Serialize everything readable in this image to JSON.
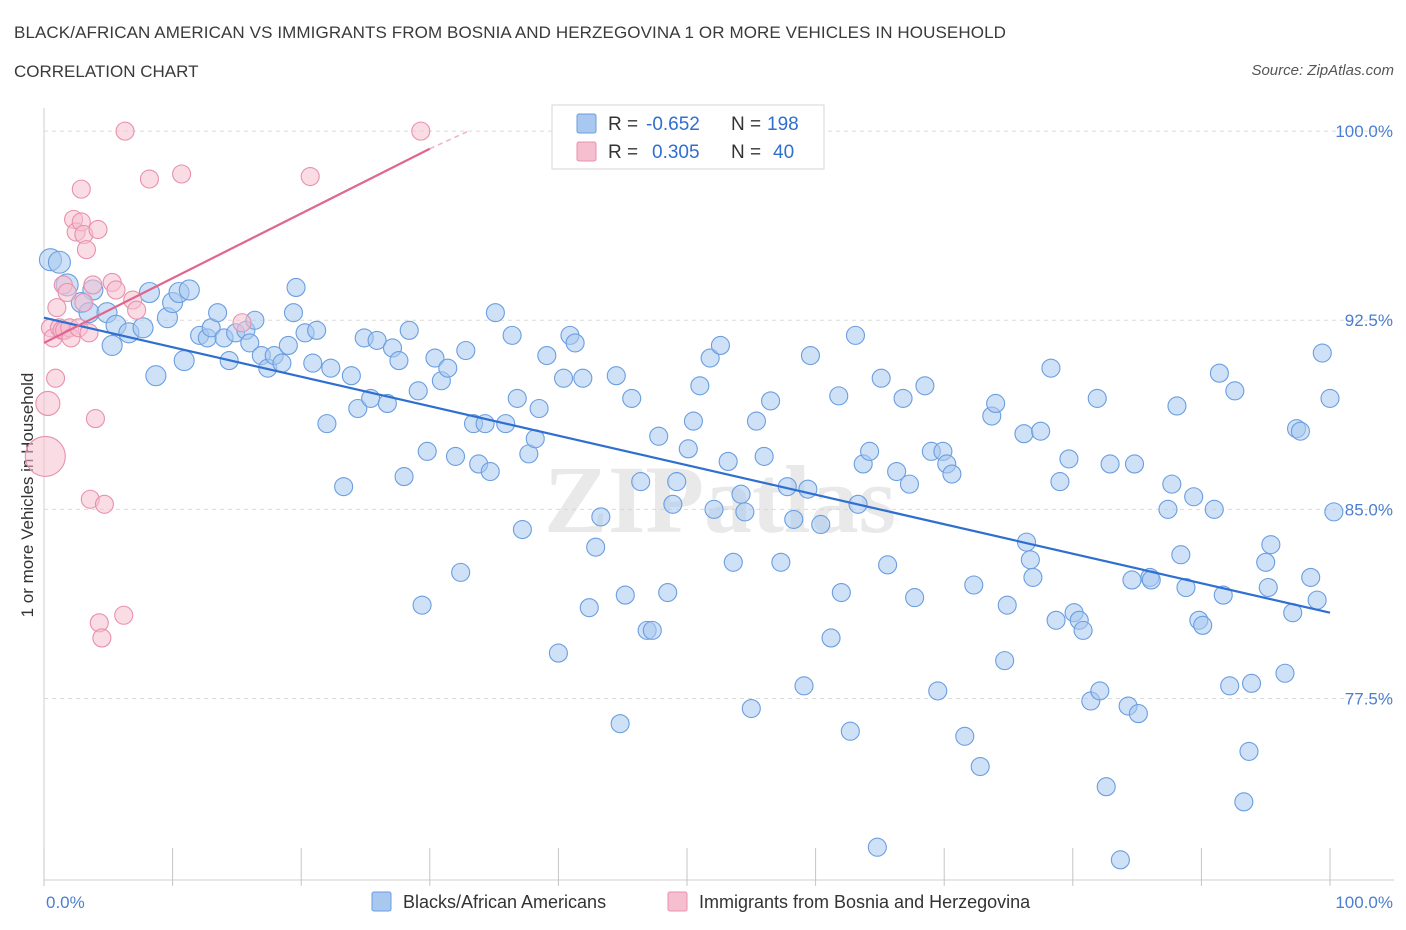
{
  "header": {
    "title": "BLACK/AFRICAN AMERICAN VS IMMIGRANTS FROM BOSNIA AND HERZEGOVINA 1 OR MORE VEHICLES IN HOUSEHOLD",
    "subtitle": "CORRELATION CHART",
    "source": "Source: ZipAtlas.com"
  },
  "watermark": "ZIPatlas",
  "legend": {
    "r_label": "R =",
    "n_label": "N =",
    "rows": [
      {
        "r": "-0.652",
        "n": "198"
      },
      {
        "r": "0.305",
        "n": "40"
      }
    ]
  },
  "bottom_legend": {
    "items": [
      "Blacks/African Americans",
      "Immigrants from Bosnia and Herzegovina"
    ]
  },
  "colors": {
    "blue_fill": "#a8c8f0",
    "blue_stroke": "#6a9ee0",
    "blue_line": "#2f6fd0",
    "pink_fill": "#f6bfd0",
    "pink_stroke": "#e890ae",
    "pink_line": "#e0668f",
    "grid": "#dcdcdc",
    "tick_label": "#4a7fd0"
  },
  "chart_data": {
    "type": "scatter",
    "title": "BLACK/AFRICAN AMERICAN VS IMMIGRANTS FROM BOSNIA AND HERZEGOVINA 1 OR MORE VEHICLES IN HOUSEHOLD",
    "subtitle": "CORRELATION CHART",
    "xlabel": "",
    "ylabel": "1 or more Vehicles in Household",
    "xlim": [
      0,
      100
    ],
    "ylim": [
      70.3,
      100.6
    ],
    "y_ticks": [
      77.5,
      85.0,
      92.5,
      100.0
    ],
    "y_tick_labels": [
      "77.5%",
      "85.0%",
      "92.5%",
      "100.0%"
    ],
    "x_tick_labels": [
      "0.0%",
      "100.0%"
    ],
    "grid": true,
    "legend_position": "top-center",
    "series": [
      {
        "name": "Blacks/African Americans",
        "color": "#a8c8f0",
        "r": -0.652,
        "n": 198,
        "trend": {
          "x": [
            0,
            100
          ],
          "y": [
            92.6,
            80.9
          ]
        },
        "points": [
          [
            0.5,
            94.9
          ],
          [
            1.2,
            94.8
          ],
          [
            1.8,
            93.9
          ],
          [
            3.8,
            93.7
          ],
          [
            2.9,
            93.2
          ],
          [
            3.5,
            92.8
          ],
          [
            4.9,
            92.8
          ],
          [
            5.6,
            92.3
          ],
          [
            6.6,
            92.0
          ],
          [
            7.7,
            92.2
          ],
          [
            8.2,
            93.6
          ],
          [
            9.6,
            92.6
          ],
          [
            10.0,
            93.2
          ],
          [
            10.5,
            93.6
          ],
          [
            11.3,
            93.7
          ],
          [
            5.3,
            91.5
          ],
          [
            8.7,
            90.3
          ],
          [
            10.9,
            90.9
          ],
          [
            12.1,
            91.9
          ],
          [
            12.7,
            91.8
          ],
          [
            13.0,
            92.2
          ],
          [
            13.5,
            92.8
          ],
          [
            14.0,
            91.8
          ],
          [
            14.4,
            90.9
          ],
          [
            14.9,
            92.0
          ],
          [
            15.7,
            92.1
          ],
          [
            16.0,
            91.6
          ],
          [
            16.4,
            92.5
          ],
          [
            16.9,
            91.1
          ],
          [
            17.4,
            90.6
          ],
          [
            17.9,
            91.1
          ],
          [
            18.5,
            90.8
          ],
          [
            19.0,
            91.5
          ],
          [
            19.4,
            92.8
          ],
          [
            19.6,
            93.8
          ],
          [
            20.3,
            92.0
          ],
          [
            20.9,
            90.8
          ],
          [
            21.2,
            92.1
          ],
          [
            22.3,
            90.6
          ],
          [
            22.0,
            88.4
          ],
          [
            23.3,
            85.9
          ],
          [
            23.9,
            90.3
          ],
          [
            24.4,
            89.0
          ],
          [
            24.9,
            91.8
          ],
          [
            25.4,
            89.4
          ],
          [
            25.9,
            91.7
          ],
          [
            26.7,
            89.2
          ],
          [
            27.1,
            91.4
          ],
          [
            27.6,
            90.9
          ],
          [
            28.0,
            86.3
          ],
          [
            28.4,
            92.1
          ],
          [
            29.1,
            89.7
          ],
          [
            29.4,
            81.2
          ],
          [
            29.8,
            87.3
          ],
          [
            30.4,
            91.0
          ],
          [
            30.9,
            90.1
          ],
          [
            31.4,
            90.6
          ],
          [
            32.0,
            87.1
          ],
          [
            32.4,
            82.5
          ],
          [
            32.8,
            91.3
          ],
          [
            33.4,
            88.4
          ],
          [
            33.8,
            86.8
          ],
          [
            34.3,
            88.4
          ],
          [
            34.7,
            86.5
          ],
          [
            35.1,
            92.8
          ],
          [
            35.9,
            88.4
          ],
          [
            36.4,
            91.9
          ],
          [
            36.8,
            89.4
          ],
          [
            37.2,
            84.2
          ],
          [
            37.7,
            87.2
          ],
          [
            38.2,
            87.8
          ],
          [
            38.5,
            89.0
          ],
          [
            39.1,
            91.1
          ],
          [
            40.0,
            79.3
          ],
          [
            40.4,
            90.2
          ],
          [
            40.9,
            91.9
          ],
          [
            41.3,
            91.6
          ],
          [
            41.9,
            90.2
          ],
          [
            42.4,
            81.1
          ],
          [
            42.9,
            83.5
          ],
          [
            43.3,
            84.7
          ],
          [
            44.5,
            90.3
          ],
          [
            44.8,
            76.5
          ],
          [
            45.2,
            81.6
          ],
          [
            45.7,
            89.4
          ],
          [
            46.4,
            86.1
          ],
          [
            46.9,
            80.2
          ],
          [
            47.3,
            80.2
          ],
          [
            47.8,
            87.9
          ],
          [
            48.5,
            81.7
          ],
          [
            48.9,
            85.2
          ],
          [
            49.2,
            86.1
          ],
          [
            50.1,
            87.4
          ],
          [
            50.5,
            88.5
          ],
          [
            51.0,
            89.9
          ],
          [
            51.8,
            91.0
          ],
          [
            52.1,
            85.0
          ],
          [
            52.6,
            91.5
          ],
          [
            53.2,
            86.9
          ],
          [
            53.6,
            82.9
          ],
          [
            54.2,
            85.6
          ],
          [
            54.5,
            84.9
          ],
          [
            55.0,
            77.1
          ],
          [
            55.4,
            88.5
          ],
          [
            56.0,
            87.1
          ],
          [
            56.5,
            89.3
          ],
          [
            57.3,
            82.9
          ],
          [
            57.8,
            85.9
          ],
          [
            58.3,
            84.6
          ],
          [
            59.1,
            78.0
          ],
          [
            59.4,
            85.8
          ],
          [
            59.6,
            91.1
          ],
          [
            60.4,
            84.4
          ],
          [
            61.2,
            79.9
          ],
          [
            61.8,
            89.5
          ],
          [
            62.0,
            81.7
          ],
          [
            62.7,
            76.2
          ],
          [
            63.1,
            91.9
          ],
          [
            63.3,
            85.2
          ],
          [
            63.7,
            86.8
          ],
          [
            64.2,
            87.3
          ],
          [
            64.8,
            71.6
          ],
          [
            65.1,
            90.2
          ],
          [
            65.6,
            82.8
          ],
          [
            66.3,
            86.5
          ],
          [
            66.8,
            89.4
          ],
          [
            67.3,
            86.0
          ],
          [
            67.7,
            81.5
          ],
          [
            68.5,
            89.9
          ],
          [
            69.0,
            87.3
          ],
          [
            69.5,
            77.8
          ],
          [
            69.9,
            87.3
          ],
          [
            70.2,
            86.8
          ],
          [
            70.6,
            86.4
          ],
          [
            71.6,
            76.0
          ],
          [
            72.3,
            82.0
          ],
          [
            72.8,
            74.8
          ],
          [
            73.7,
            88.7
          ],
          [
            74.0,
            89.2
          ],
          [
            74.7,
            79.0
          ],
          [
            74.9,
            81.2
          ],
          [
            76.2,
            88.0
          ],
          [
            76.4,
            83.7
          ],
          [
            76.7,
            83.0
          ],
          [
            76.9,
            82.3
          ],
          [
            77.5,
            88.1
          ],
          [
            78.3,
            90.6
          ],
          [
            78.7,
            80.6
          ],
          [
            79.0,
            86.1
          ],
          [
            79.7,
            87.0
          ],
          [
            80.1,
            80.9
          ],
          [
            80.5,
            80.6
          ],
          [
            80.8,
            80.2
          ],
          [
            81.4,
            77.4
          ],
          [
            81.9,
            89.4
          ],
          [
            82.1,
            77.8
          ],
          [
            82.6,
            74.0
          ],
          [
            82.9,
            86.8
          ],
          [
            83.7,
            71.1
          ],
          [
            84.3,
            77.2
          ],
          [
            84.6,
            82.2
          ],
          [
            84.8,
            86.8
          ],
          [
            85.1,
            76.9
          ],
          [
            86.0,
            82.3
          ],
          [
            86.1,
            82.2
          ],
          [
            87.4,
            85.0
          ],
          [
            87.7,
            86.0
          ],
          [
            88.1,
            89.1
          ],
          [
            88.4,
            83.2
          ],
          [
            88.8,
            81.9
          ],
          [
            89.4,
            85.5
          ],
          [
            89.8,
            80.6
          ],
          [
            90.1,
            80.4
          ],
          [
            91.0,
            85.0
          ],
          [
            91.4,
            90.4
          ],
          [
            91.7,
            81.6
          ],
          [
            92.2,
            78.0
          ],
          [
            92.6,
            89.7
          ],
          [
            93.3,
            73.4
          ],
          [
            93.7,
            75.4
          ],
          [
            93.9,
            78.1
          ],
          [
            95.0,
            82.9
          ],
          [
            95.2,
            81.9
          ],
          [
            95.4,
            83.6
          ],
          [
            96.5,
            78.5
          ],
          [
            97.1,
            80.9
          ],
          [
            97.4,
            88.2
          ],
          [
            97.7,
            88.1
          ],
          [
            98.5,
            82.3
          ],
          [
            99.0,
            81.4
          ],
          [
            99.4,
            91.2
          ],
          [
            100.0,
            89.4
          ],
          [
            100.3,
            84.9
          ]
        ]
      },
      {
        "name": "Immigrants from Bosnia and Herzegovina",
        "color": "#f6bfd0",
        "r": 0.305,
        "n": 40,
        "trend": {
          "x": [
            0,
            30
          ],
          "y": [
            91.6,
            99.3
          ]
        },
        "trend_dashed": {
          "x": [
            30,
            33
          ],
          "y": [
            99.3,
            100.0
          ]
        },
        "points": [
          [
            0.1,
            87.1
          ],
          [
            0.3,
            89.2
          ],
          [
            0.5,
            92.2
          ],
          [
            0.7,
            91.8
          ],
          [
            0.9,
            90.2
          ],
          [
            1.0,
            93.0
          ],
          [
            1.2,
            92.2
          ],
          [
            1.4,
            92.1
          ],
          [
            1.5,
            93.9
          ],
          [
            1.6,
            92.1
          ],
          [
            1.8,
            93.6
          ],
          [
            2.0,
            92.2
          ],
          [
            2.1,
            91.8
          ],
          [
            2.3,
            96.5
          ],
          [
            2.5,
            96.0
          ],
          [
            2.7,
            92.2
          ],
          [
            2.9,
            97.7
          ],
          [
            2.9,
            96.4
          ],
          [
            3.1,
            95.9
          ],
          [
            3.1,
            93.2
          ],
          [
            3.3,
            95.3
          ],
          [
            3.5,
            92.0
          ],
          [
            3.6,
            85.4
          ],
          [
            3.8,
            93.9
          ],
          [
            4.0,
            88.6
          ],
          [
            4.2,
            96.1
          ],
          [
            4.3,
            80.5
          ],
          [
            4.5,
            79.9
          ],
          [
            4.7,
            85.2
          ],
          [
            5.3,
            94.0
          ],
          [
            5.6,
            93.7
          ],
          [
            6.2,
            80.8
          ],
          [
            6.9,
            93.3
          ],
          [
            7.2,
            92.9
          ],
          [
            6.3,
            100.0
          ],
          [
            8.2,
            98.1
          ],
          [
            10.7,
            98.3
          ],
          [
            15.4,
            92.4
          ],
          [
            20.7,
            98.2
          ],
          [
            29.3,
            100.0
          ]
        ]
      }
    ]
  }
}
